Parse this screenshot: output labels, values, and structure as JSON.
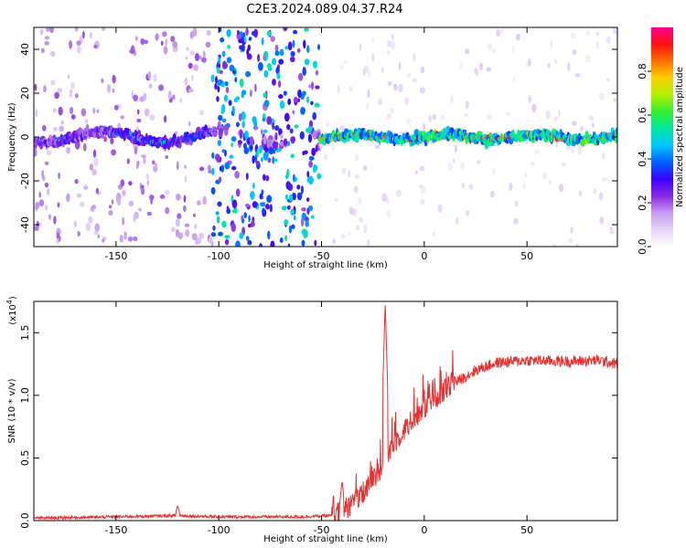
{
  "title": "C2E3.2024.089.04.37.R24",
  "chart_data": [
    {
      "type": "heatmap",
      "xlabel": "Height of straight line (km)",
      "ylabel": "Frequency (Hz)",
      "xlim": [
        -190,
        94
      ],
      "ylim": [
        -50,
        50
      ],
      "xticks": [
        -150,
        -100,
        -50,
        0,
        50
      ],
      "yticks": [
        -40,
        -20,
        0,
        20,
        40
      ],
      "colorbar": {
        "label": "Normalized spectral amplitude",
        "range": [
          0.0,
          1.0
        ],
        "ticks": [
          "0.0",
          "0.2",
          "0.4",
          "0.6",
          "0.8"
        ],
        "tick_values": [
          0.0,
          0.2,
          0.4,
          0.6,
          0.8
        ]
      },
      "colormap": [
        "#ffffff",
        "#e7d4f7",
        "#c59bf0",
        "#8a2be2",
        "#3b00ff",
        "#0060ff",
        "#00c8ff",
        "#00e8a0",
        "#30f030",
        "#b0f000",
        "#ffd000",
        "#ff7000",
        "#ff1010",
        "#ff0090"
      ],
      "regions": [
        {
          "x": [
            -190,
            -155
          ],
          "band_amplitude": 0.35,
          "scatter_amplitude": 0.12
        },
        {
          "x": [
            -155,
            -103
          ],
          "band_amplitude": 0.42,
          "scatter_amplitude": 0.12
        },
        {
          "x": [
            -103,
            -51
          ],
          "band_amplitude": 0.3,
          "scatter_amplitude": 0.3
        },
        {
          "x": [
            -51,
            94
          ],
          "band_amplitude": 0.75,
          "scatter_amplitude": 0.05
        }
      ]
    },
    {
      "type": "line",
      "xlabel": "Height of straight line (km)",
      "ylabel": "SNR (10 * v/v)",
      "multiplier": "(x10",
      "multiplier_exp": "4",
      "multiplier_close": ")",
      "xlim": [
        -190,
        94
      ],
      "ylim": [
        0,
        1.75
      ],
      "xticks": [
        -150,
        -100,
        -50,
        0,
        50
      ],
      "yticks": [
        "0.0",
        "0.5",
        "1.0",
        "1.5"
      ],
      "ytick_values": [
        0.0,
        0.5,
        1.0,
        1.5
      ],
      "line_color": "#e83030",
      "trend": {
        "x": [
          -190,
          -150,
          -120,
          -100,
          -60,
          -45,
          -38,
          -30,
          -25,
          -20,
          -17,
          -12,
          -5,
          5,
          15,
          25,
          35,
          50,
          70,
          85,
          94
        ],
        "y": [
          0.02,
          0.03,
          0.04,
          0.03,
          0.03,
          0.04,
          0.1,
          0.2,
          0.32,
          0.45,
          0.55,
          0.68,
          0.82,
          0.98,
          1.1,
          1.2,
          1.26,
          1.28,
          1.27,
          1.28,
          1.25
        ]
      },
      "peaks": [
        {
          "x": -120,
          "y": 0.12
        },
        {
          "x": -40,
          "y": 0.32
        },
        {
          "x": -19,
          "y": 1.75
        }
      ]
    }
  ]
}
